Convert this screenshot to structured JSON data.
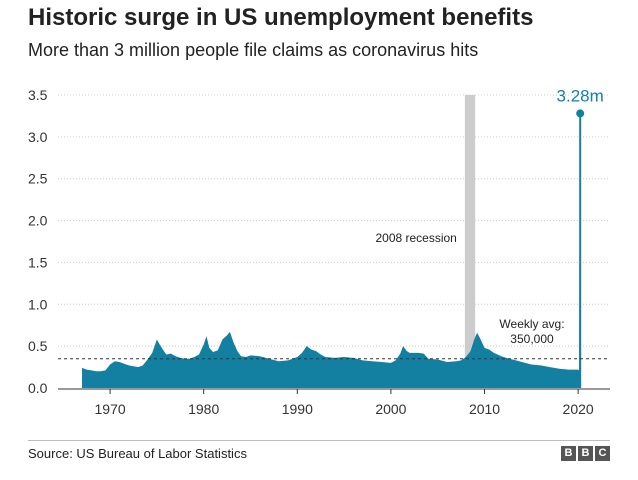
{
  "header": {
    "title": "Historic surge in US unemployment benefits",
    "subtitle": "More than 3 million people file claims as coronavirus hits"
  },
  "footer": {
    "source": "Source: US Bureau of Labor Statistics",
    "logo_letters": [
      "B",
      "B",
      "C"
    ]
  },
  "chart_data": {
    "type": "area",
    "unit": "millions of weekly claims",
    "ylim": [
      0,
      3.5
    ],
    "xlim": [
      1966.0,
      2022.0
    ],
    "yticks": [
      "0.0",
      "0.5",
      "1.0",
      "1.5",
      "2.0",
      "2.5",
      "3.0",
      "3.5"
    ],
    "xticks": [
      "1970",
      "1980",
      "1990",
      "2000",
      "2010",
      "2020"
    ],
    "grid": "horizontal dotted",
    "colors": {
      "area": "#1380a1",
      "recession_band": "#cccccc",
      "avg_line": "#333333",
      "peak_label": "#1380a1"
    },
    "recession_band": {
      "label": "2008 recession",
      "start": 2007.9,
      "end": 2009.0
    },
    "average_line": {
      "value": 0.35,
      "label_line1": "Weekly avg:",
      "label_line2": "350,000"
    },
    "peak": {
      "x": 2020.22,
      "value": 3.28,
      "label": "3.28m"
    },
    "series": [
      {
        "x": [
          1967.0,
          1967.5,
          1968.0,
          1968.5,
          1969.0,
          1969.5,
          1970.0,
          1970.5,
          1971.0,
          1971.5,
          1972.0,
          1972.5,
          1973.0,
          1973.5,
          1974.0,
          1974.5,
          1975.0,
          1975.3,
          1975.7,
          1976.0,
          1976.5,
          1977.0,
          1977.5,
          1978.0,
          1978.5,
          1979.0,
          1979.5,
          1980.0,
          1980.3,
          1980.6,
          1981.0,
          1981.5,
          1982.0,
          1982.5,
          1982.8,
          1983.2,
          1983.6,
          1984.0,
          1984.5,
          1985.0,
          1986.0,
          1987.0,
          1988.0,
          1989.0,
          1990.0,
          1990.5,
          1991.0,
          1991.5,
          1992.0,
          1992.5,
          1993.0,
          1994.0,
          1995.0,
          1996.0,
          1997.0,
          1998.0,
          1999.0,
          2000.0,
          2000.5,
          2001.0,
          2001.3,
          2001.7,
          2002.0,
          2002.5,
          2003.0,
          2003.5,
          2004.0,
          2005.0,
          2006.0,
          2007.0,
          2007.5,
          2008.0,
          2008.5,
          2008.9,
          2009.2,
          2009.5,
          2010.0,
          2010.5,
          2011.0,
          2012.0,
          2013.0,
          2014.0,
          2015.0,
          2016.0,
          2017.0,
          2018.0,
          2019.0,
          2020.0,
          2020.1,
          2020.2
        ],
        "values": [
          0.24,
          0.22,
          0.21,
          0.2,
          0.2,
          0.21,
          0.28,
          0.32,
          0.31,
          0.29,
          0.27,
          0.26,
          0.25,
          0.27,
          0.34,
          0.42,
          0.58,
          0.52,
          0.45,
          0.4,
          0.41,
          0.38,
          0.36,
          0.35,
          0.35,
          0.37,
          0.4,
          0.52,
          0.62,
          0.48,
          0.43,
          0.45,
          0.58,
          0.63,
          0.67,
          0.54,
          0.44,
          0.38,
          0.37,
          0.39,
          0.38,
          0.35,
          0.32,
          0.33,
          0.37,
          0.42,
          0.5,
          0.46,
          0.44,
          0.4,
          0.37,
          0.36,
          0.37,
          0.36,
          0.33,
          0.32,
          0.31,
          0.3,
          0.33,
          0.41,
          0.5,
          0.44,
          0.42,
          0.42,
          0.42,
          0.41,
          0.35,
          0.34,
          0.31,
          0.32,
          0.33,
          0.37,
          0.44,
          0.58,
          0.66,
          0.6,
          0.48,
          0.46,
          0.42,
          0.37,
          0.34,
          0.31,
          0.28,
          0.27,
          0.25,
          0.23,
          0.22,
          0.22,
          0.21,
          3.28
        ]
      }
    ]
  }
}
